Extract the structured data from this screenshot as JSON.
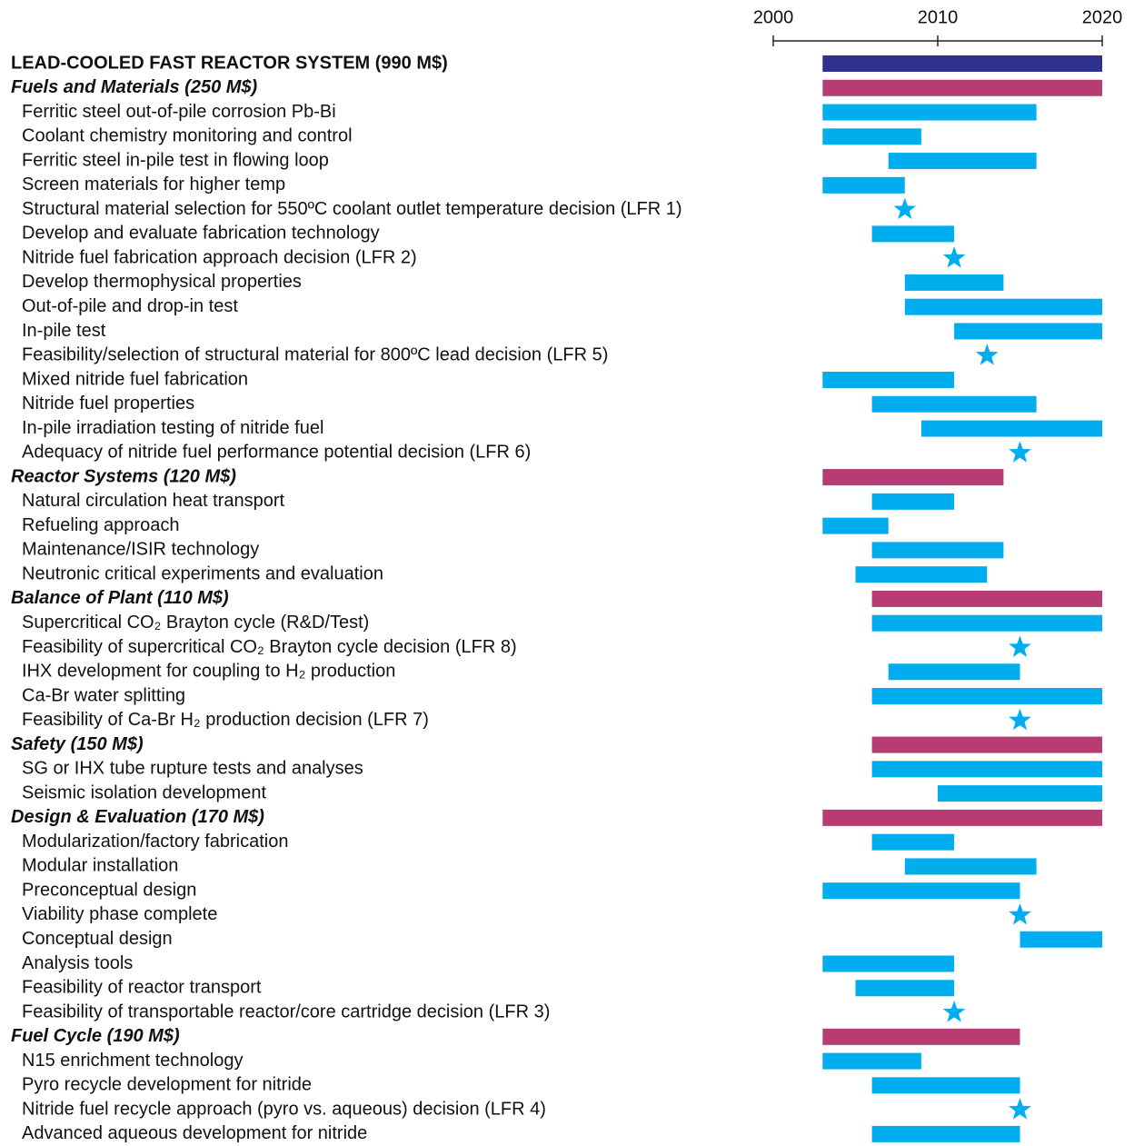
{
  "chart_data": {
    "type": "gantt",
    "xlim": [
      2000,
      2020
    ],
    "xticks": [
      2000,
      2010,
      2020
    ],
    "system_color": "#2e3192",
    "group_color": "#b83c74",
    "task_color": "#00aeef",
    "system": {
      "label": "LEAD-COOLED FAST REACTOR SYSTEM (990 M$)",
      "start": 2003,
      "end": 2020
    },
    "groups": [
      {
        "label": "Fuels and Materials (250 M$)",
        "start": 2003,
        "end": 2020,
        "tasks": [
          {
            "label": "Ferritic steel out-of-pile corrosion Pb-Bi",
            "start": 2003,
            "end": 2016
          },
          {
            "label": "Coolant chemistry monitoring and control",
            "start": 2003,
            "end": 2009
          },
          {
            "label": "Ferritic steel in-pile test in flowing loop",
            "start": 2007,
            "end": 2016
          },
          {
            "label": "Screen materials for higher temp",
            "start": 2003,
            "end": 2008
          },
          {
            "label": "Structural material selection for 550ºC coolant outlet temperature decision (LFR 1)",
            "milestone": 2008
          },
          {
            "label": "Develop and evaluate fabrication technology",
            "start": 2006,
            "end": 2011
          },
          {
            "label": "Nitride fuel fabrication approach decision (LFR 2)",
            "milestone": 2011
          },
          {
            "label": "Develop thermophysical properties",
            "start": 2008,
            "end": 2014
          },
          {
            "label": "Out-of-pile and drop-in test",
            "start": 2008,
            "end": 2020
          },
          {
            "label": "In-pile test",
            "start": 2011,
            "end": 2020
          },
          {
            "label": "Feasibility/selection of structural material for 800ºC lead decision (LFR 5)",
            "milestone": 2013
          },
          {
            "label": "Mixed nitride fuel fabrication",
            "start": 2003,
            "end": 2011
          },
          {
            "label": "Nitride fuel properties",
            "start": 2006,
            "end": 2016
          },
          {
            "label": "In-pile irradiation testing of nitride fuel",
            "start": 2009,
            "end": 2020
          },
          {
            "label": "Adequacy of nitride fuel performance potential decision (LFR 6)",
            "milestone": 2015
          }
        ]
      },
      {
        "label": "Reactor Systems (120 M$)",
        "start": 2003,
        "end": 2014,
        "tasks": [
          {
            "label": "Natural circulation heat transport",
            "start": 2006,
            "end": 2011
          },
          {
            "label": "Refueling approach",
            "start": 2003,
            "end": 2007
          },
          {
            "label": "Maintenance/ISIR technology",
            "start": 2006,
            "end": 2014
          },
          {
            "label": "Neutronic critical experiments and evaluation",
            "start": 2005,
            "end": 2013
          }
        ]
      },
      {
        "label": "Balance of Plant (110 M$)",
        "start": 2006,
        "end": 2020,
        "tasks": [
          {
            "label": "Supercritical CO₂ Brayton cycle (R&D/Test)",
            "start": 2006,
            "end": 2020
          },
          {
            "label": "Feasibility of supercritical CO₂ Brayton cycle decision (LFR 8)",
            "milestone": 2015
          },
          {
            "label": "IHX development for coupling to H₂ production",
            "start": 2007,
            "end": 2015
          },
          {
            "label": "Ca-Br water splitting",
            "start": 2006,
            "end": 2020
          },
          {
            "label": "Feasibility of Ca-Br H₂ production decision (LFR 7)",
            "milestone": 2015
          }
        ]
      },
      {
        "label": "Safety (150 M$)",
        "start": 2006,
        "end": 2020,
        "tasks": [
          {
            "label": "SG or IHX tube rupture tests and analyses",
            "start": 2006,
            "end": 2020
          },
          {
            "label": "Seismic isolation development",
            "start": 2010,
            "end": 2020
          }
        ]
      },
      {
        "label": "Design & Evaluation (170 M$)",
        "start": 2003,
        "end": 2020,
        "tasks": [
          {
            "label": "Modularization/factory fabrication",
            "start": 2006,
            "end": 2011
          },
          {
            "label": "Modular installation",
            "start": 2008,
            "end": 2016
          },
          {
            "label": "Preconceptual design",
            "start": 2003,
            "end": 2015
          },
          {
            "label": "Viability phase complete",
            "milestone": 2015
          },
          {
            "label": "Conceptual design",
            "start": 2015,
            "end": 2020
          },
          {
            "label": "Analysis tools",
            "start": 2003,
            "end": 2011
          },
          {
            "label": "Feasibility of reactor transport",
            "start": 2005,
            "end": 2011
          },
          {
            "label": "Feasibility of transportable reactor/core cartridge decision (LFR 3)",
            "milestone": 2011
          }
        ]
      },
      {
        "label": "Fuel Cycle (190 M$)",
        "start": 2003,
        "end": 2015,
        "tasks": [
          {
            "label": "N15 enrichment technology",
            "start": 2003,
            "end": 2009
          },
          {
            "label": "Pyro recycle development for nitride",
            "start": 2006,
            "end": 2015
          },
          {
            "label": "Nitride fuel recycle approach (pyro vs. aqueous) decision (LFR 4)",
            "milestone": 2015
          },
          {
            "label": "Advanced aqueous development for nitride",
            "start": 2006,
            "end": 2015
          }
        ]
      }
    ]
  }
}
